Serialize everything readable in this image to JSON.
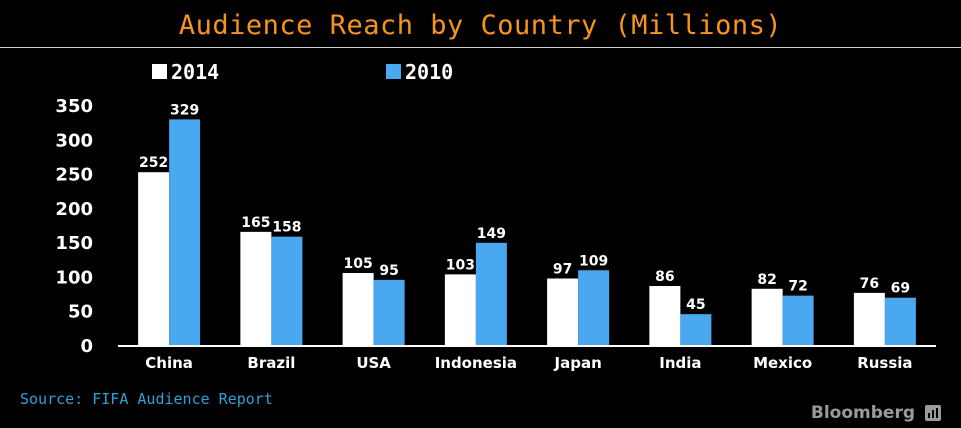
{
  "chart_data": {
    "type": "bar",
    "title": "Audience Reach by Country (Millions)",
    "categories": [
      "China",
      "Brazil",
      "USA",
      "Indonesia",
      "Japan",
      "India",
      "Mexico",
      "Russia"
    ],
    "series": [
      {
        "name": "2014",
        "color": "#ffffff",
        "values": [
          252,
          165,
          105,
          103,
          97,
          86,
          82,
          76
        ]
      },
      {
        "name": "2010",
        "color": "#4aa8f0",
        "values": [
          329,
          158,
          95,
          149,
          109,
          45,
          72,
          69
        ]
      }
    ],
    "yticks": [
      0,
      50,
      100,
      150,
      200,
      250,
      300,
      350
    ],
    "ylim": [
      0,
      350
    ],
    "legend": "top-left",
    "grid": false
  },
  "source": "Source: FIFA Audience Report",
  "brand": {
    "name": "Bloomberg",
    "icon": "bloomberg-chart-icon"
  }
}
